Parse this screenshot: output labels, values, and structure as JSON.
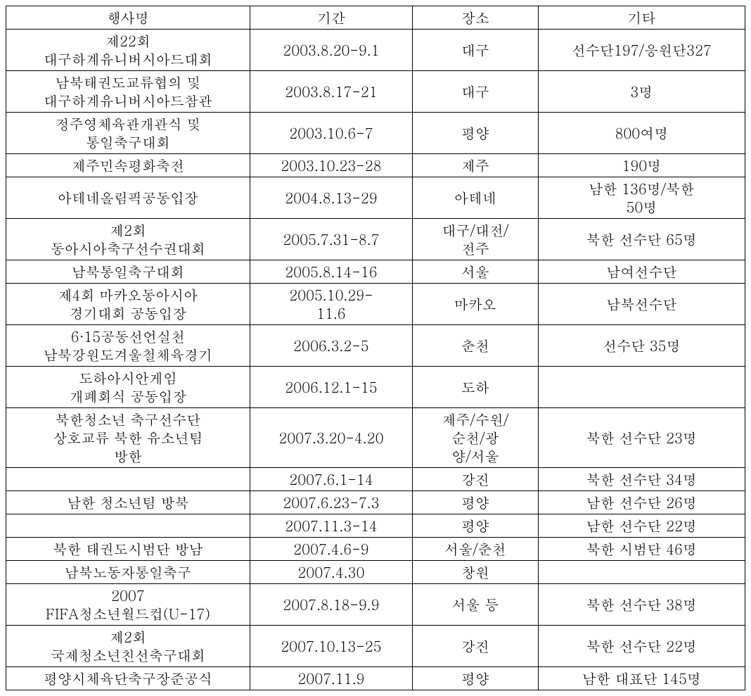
{
  "table": {
    "type": "table",
    "background_color": "#ffffff",
    "border_color": "#000000",
    "font_size_pt": 15,
    "font_family": "Batang, serif",
    "columns": [
      {
        "label": "행사명",
        "width_pct": 33,
        "align": "center"
      },
      {
        "label": "기간",
        "width_pct": 22,
        "align": "center"
      },
      {
        "label": "장소",
        "width_pct": 17,
        "align": "center"
      },
      {
        "label": "기타",
        "width_pct": 28,
        "align": "center"
      }
    ],
    "rows": [
      {
        "event": "제22회\n대구하계유니버시아드대회",
        "period": "2003.8.20-9.1",
        "place": "대구",
        "other": "선수단197/응원단327"
      },
      {
        "event": "남북태권도교류협의 및\n대구하계유니버시아드참관",
        "period": "2003.8.17-21",
        "place": "대구",
        "other": "3명"
      },
      {
        "event": "정주영체육관개관식 및\n통일축구대회",
        "period": "2003.10.6-7",
        "place": "평양",
        "other": "800여명"
      },
      {
        "event": "제주민속평화축전",
        "period": "2003.10.23-28",
        "place": "제주",
        "other": "190명"
      },
      {
        "event": "아테네올림픽공동입장",
        "period": "2004.8.13-29",
        "place": "아테네",
        "other": "남한 136명/북한\n50명"
      },
      {
        "event": "제2회\n동아시아축구선수권대회",
        "period": "2005.7.31-8.7",
        "place": "대구/대전/\n전주",
        "other": "북한 선수단 65명"
      },
      {
        "event": "남북통일축구대회",
        "period": "2005.8.14-16",
        "place": "서울",
        "other": "남여선수단"
      },
      {
        "event": "제4회 마카오동아시아\n경기대회 공동입장",
        "period": "2005.10.29-\n11.6",
        "place": "마카오",
        "other": "남북선수단"
      },
      {
        "event": "6·15공동선언실천\n남북강원도겨울철체육경기",
        "period": "2006.3.2-5",
        "place": "춘천",
        "other": "선수단 35명"
      },
      {
        "event": "도하아시안게임\n개폐회식 공동입장",
        "period": "2006.12.1-15",
        "place": "도하",
        "other": ""
      },
      {
        "event": "북한청소년 축구선수단\n상호교류 북한 유소년팀\n방한",
        "period": "2007.3.20-4.20",
        "place": "제주/수원/\n순천/광\n양/서울",
        "other": "북한 선수단 23명"
      },
      {
        "event": "",
        "period": "2007.6.1-14",
        "place": "강진",
        "other": "북한 선수단 34명"
      },
      {
        "event": "남한 청소년팀 방북",
        "period": "2007.6.23-7.3",
        "place": "평양",
        "other": "남한 선수단 26명"
      },
      {
        "event": "",
        "period": "2007.11.3-14",
        "place": "평양",
        "other": "남한 선수단 22명"
      },
      {
        "event": "북한 태권도시범단 방남",
        "period": "2007.4.6-9",
        "place": "서울/춘천",
        "other": "북한 시범단 46명"
      },
      {
        "event": "남북노동자통일축구",
        "period": "2007.4.30",
        "place": "창원",
        "other": ""
      },
      {
        "event": "2007\nFIFA청소년월드컵(U-17)",
        "period": "2007.8.18-9.9",
        "place": "서울 등",
        "other": "북한 선수단 38명"
      },
      {
        "event": "제2회\n국제청소년친선축구대회",
        "period": "2007.10.13-25",
        "place": "강진",
        "other": "북한 선수단 22명"
      },
      {
        "event": "평양시체육단축구장준공식",
        "period": "2007.11.9",
        "place": "평양",
        "other": "남한 대표단 145명"
      }
    ]
  }
}
